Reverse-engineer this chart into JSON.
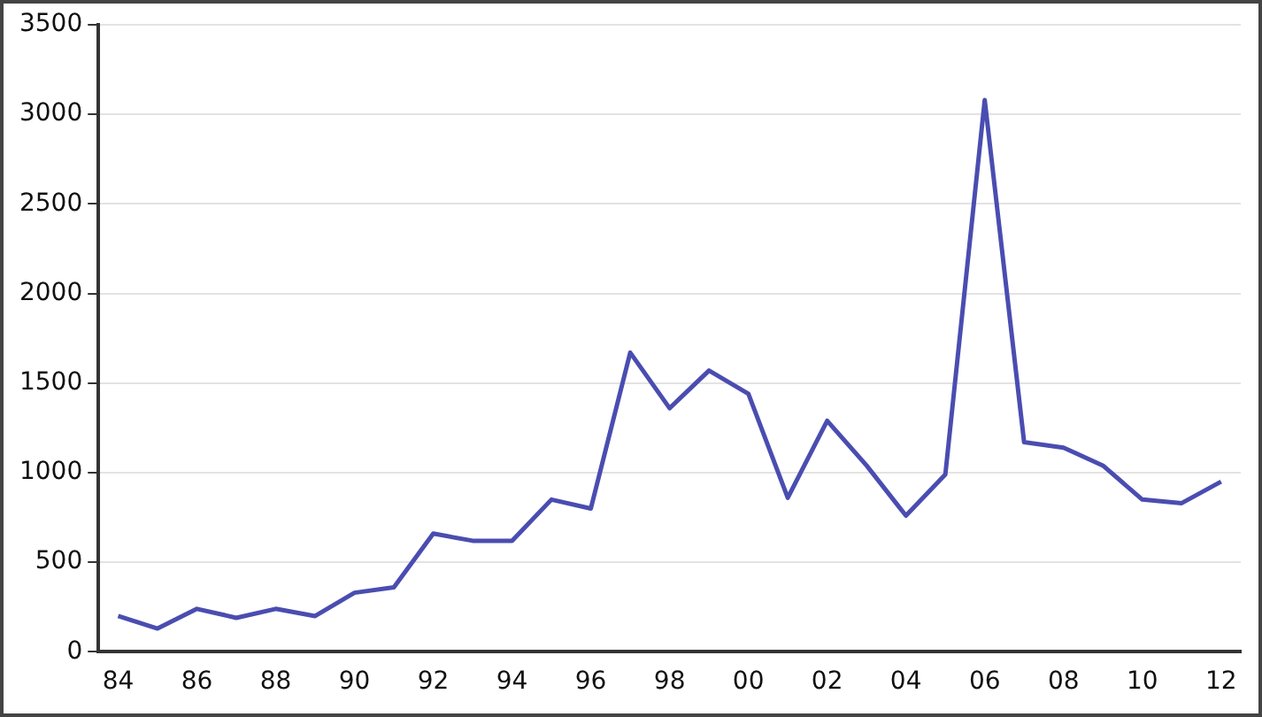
{
  "chart_data": {
    "type": "line",
    "categories": [
      "84",
      null,
      "86",
      null,
      "88",
      null,
      "90",
      null,
      "92",
      null,
      "94",
      null,
      "96",
      null,
      "98",
      null,
      "00",
      null,
      "02",
      null,
      "04",
      null,
      "06",
      null,
      "08",
      null,
      "10",
      null,
      "12"
    ],
    "series": [
      {
        "color": "#4a4db0",
        "values": [
          200,
          130,
          240,
          190,
          240,
          200,
          330,
          360,
          660,
          620,
          620,
          850,
          800,
          1670,
          1360,
          1570,
          1440,
          860,
          1290,
          1040,
          760,
          990,
          3080,
          1170,
          1140,
          1040,
          850,
          830,
          950
        ]
      }
    ],
    "ylim": [
      0,
      3500
    ],
    "yticks": [
      0,
      500,
      1000,
      1500,
      2000,
      2500,
      3000,
      3500
    ],
    "grid": "y",
    "legend": false,
    "marker": "none",
    "line_style": "solid"
  }
}
